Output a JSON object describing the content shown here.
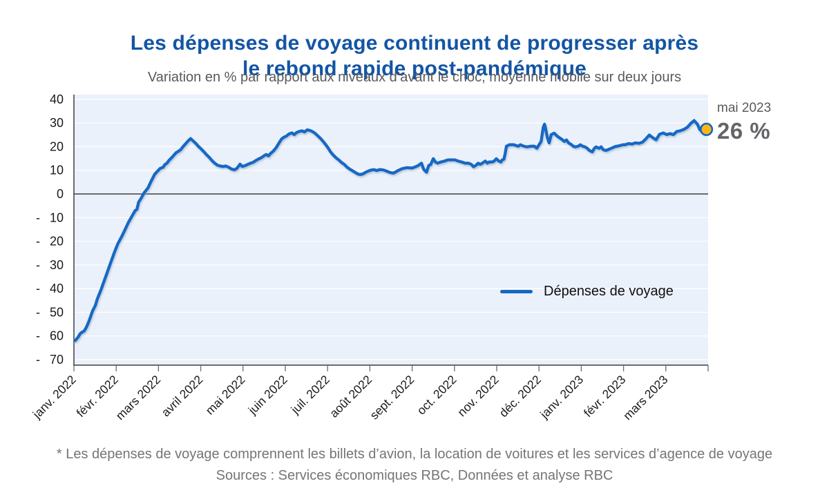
{
  "header": {
    "title_line1": "Les dépenses de voyage continuent de progresser après",
    "title_line2": "le rebond rapide post-pandémique",
    "subtitle": "Variation en % par rapport aux niveaux d’avant le choc, moyenne mobile sur deux jours"
  },
  "legend": {
    "label": "Dépenses de voyage"
  },
  "annotation": {
    "line1": "mai 2023",
    "line2": "26 %"
  },
  "footnote": {
    "line1": "* Les dépenses de voyage comprennent les billets d’avion, la location de voitures et les services d’agence de voyage",
    "line2": "Sources : Services économiques RBC, Données et analyse RBC"
  },
  "chart_data": {
    "type": "line",
    "title": "Les dépenses de voyage continuent de progresser après le rebond rapide post-pandémique",
    "subtitle": "Variation en % par rapport aux niveaux d’avant le choc, moyenne mobile sur deux jours",
    "legend_position": "center-right",
    "grid": true,
    "x_axis": {
      "n_ticks": 16,
      "tick_labels": [
        "janv. 2022",
        "févr. 2022",
        "mars 2022",
        "avril 2022",
        "mai 2022",
        "juin 2022",
        "juil. 2022",
        "août 2022",
        "sept. 2022",
        "oct. 2022",
        "nov. 2022",
        "déc. 2022",
        "janv. 2023",
        "févr. 2023",
        "mars 2023"
      ],
      "note": "x unit of series points = months since the janv. 2022 tick (0 = 1 janv. 2022); 16th tick unlabeled"
    },
    "y_axis": {
      "ticks": [
        40,
        30,
        20,
        10,
        0,
        -10,
        -20,
        -30,
        -40,
        -50,
        -60,
        -70
      ],
      "range": [
        -72,
        42
      ],
      "unit": "%"
    },
    "annotation": {
      "date_label": "mai 2023",
      "value_label": "26 %",
      "value": 26
    },
    "series": [
      {
        "name": "Dépenses de voyage",
        "points": [
          [
            0.03,
            -62
          ],
          [
            0.1,
            -60.5
          ],
          [
            0.15,
            -59
          ],
          [
            0.2,
            -58.3
          ],
          [
            0.24,
            -58
          ],
          [
            0.29,
            -56.5
          ],
          [
            0.34,
            -54.5
          ],
          [
            0.39,
            -52
          ],
          [
            0.44,
            -49.5
          ],
          [
            0.51,
            -47
          ],
          [
            0.55,
            -44.5
          ],
          [
            0.64,
            -40.5
          ],
          [
            0.72,
            -36.5
          ],
          [
            0.8,
            -32.5
          ],
          [
            0.88,
            -28.5
          ],
          [
            0.96,
            -24.5
          ],
          [
            1.04,
            -21
          ],
          [
            1.13,
            -18
          ],
          [
            1.21,
            -15
          ],
          [
            1.29,
            -12
          ],
          [
            1.37,
            -9.5
          ],
          [
            1.45,
            -7
          ],
          [
            1.49,
            -6.5
          ],
          [
            1.53,
            -3.5
          ],
          [
            1.6,
            -1.5
          ],
          [
            1.66,
            0.5
          ],
          [
            1.75,
            2.5
          ],
          [
            1.83,
            5.5
          ],
          [
            1.91,
            8.3
          ],
          [
            1.97,
            9.5
          ],
          [
            2.04,
            10.8
          ],
          [
            2.11,
            11.3
          ],
          [
            2.15,
            12.4
          ],
          [
            2.2,
            13
          ],
          [
            2.25,
            14.2
          ],
          [
            2.32,
            15.5
          ],
          [
            2.37,
            16.5
          ],
          [
            2.42,
            17.5
          ],
          [
            2.46,
            17.9
          ],
          [
            2.53,
            18.8
          ],
          [
            2.58,
            20
          ],
          [
            2.64,
            21.2
          ],
          [
            2.71,
            22.6
          ],
          [
            2.76,
            23.4
          ],
          [
            2.82,
            22.4
          ],
          [
            2.89,
            21.2
          ],
          [
            2.95,
            20
          ],
          [
            3,
            19.2
          ],
          [
            3.07,
            17.9
          ],
          [
            3.13,
            16.7
          ],
          [
            3.2,
            15.5
          ],
          [
            3.26,
            14.2
          ],
          [
            3.33,
            13
          ],
          [
            3.39,
            12.2
          ],
          [
            3.46,
            11.8
          ],
          [
            3.53,
            11.6
          ],
          [
            3.59,
            11.8
          ],
          [
            3.66,
            11.3
          ],
          [
            3.72,
            10.6
          ],
          [
            3.79,
            10.2
          ],
          [
            3.84,
            10.6
          ],
          [
            3.88,
            11.4
          ],
          [
            3.93,
            12.6
          ],
          [
            3.98,
            11.6
          ],
          [
            4.05,
            12
          ],
          [
            4.11,
            12.5
          ],
          [
            4.18,
            13
          ],
          [
            4.24,
            13.4
          ],
          [
            4.31,
            14.2
          ],
          [
            4.37,
            14.8
          ],
          [
            4.44,
            15.4
          ],
          [
            4.5,
            16.2
          ],
          [
            4.55,
            16.7
          ],
          [
            4.6,
            16.1
          ],
          [
            4.65,
            17.1
          ],
          [
            4.72,
            18.2
          ],
          [
            4.78,
            19.5
          ],
          [
            4.85,
            21.5
          ],
          [
            4.91,
            23.2
          ],
          [
            4.96,
            23.9
          ],
          [
            5.03,
            24.5
          ],
          [
            5.09,
            25.4
          ],
          [
            5.16,
            25.8
          ],
          [
            5.21,
            25.1
          ],
          [
            5.27,
            26
          ],
          [
            5.34,
            26.5
          ],
          [
            5.4,
            26.7
          ],
          [
            5.45,
            26.2
          ],
          [
            5.52,
            27.1
          ],
          [
            5.57,
            26.9
          ],
          [
            5.63,
            26.5
          ],
          [
            5.7,
            25.7
          ],
          [
            5.76,
            24.7
          ],
          [
            5.83,
            23.5
          ],
          [
            5.89,
            22.3
          ],
          [
            5.94,
            21.2
          ],
          [
            6.01,
            19.5
          ],
          [
            6.07,
            17.8
          ],
          [
            6.14,
            16.3
          ],
          [
            6.2,
            15.3
          ],
          [
            6.27,
            14.3
          ],
          [
            6.33,
            13.3
          ],
          [
            6.4,
            12.4
          ],
          [
            6.46,
            11.3
          ],
          [
            6.53,
            10.4
          ],
          [
            6.59,
            9.8
          ],
          [
            6.66,
            9
          ],
          [
            6.72,
            8.4
          ],
          [
            6.77,
            8.2
          ],
          [
            6.84,
            8.5
          ],
          [
            6.9,
            9.2
          ],
          [
            6.97,
            9.7
          ],
          [
            7.03,
            10.1
          ],
          [
            7.1,
            10.3
          ],
          [
            7.16,
            9.9
          ],
          [
            7.23,
            10.3
          ],
          [
            7.3,
            10.2
          ],
          [
            7.36,
            9.9
          ],
          [
            7.43,
            9.4
          ],
          [
            7.49,
            9
          ],
          [
            7.56,
            8.8
          ],
          [
            7.62,
            9.4
          ],
          [
            7.69,
            10.1
          ],
          [
            7.75,
            10.6
          ],
          [
            7.82,
            10.9
          ],
          [
            7.88,
            11.1
          ],
          [
            7.95,
            11
          ],
          [
            8.01,
            11
          ],
          [
            8.08,
            11.5
          ],
          [
            8.14,
            12
          ],
          [
            8.22,
            13
          ],
          [
            8.27,
            10.5
          ],
          [
            8.34,
            9.2
          ],
          [
            8.39,
            12
          ],
          [
            8.44,
            12.5
          ],
          [
            8.5,
            14.9
          ],
          [
            8.55,
            13.5
          ],
          [
            8.6,
            13
          ],
          [
            8.68,
            13.5
          ],
          [
            8.76,
            13.9
          ],
          [
            8.85,
            14.4
          ],
          [
            8.93,
            14.4
          ],
          [
            9.01,
            14.4
          ],
          [
            9.09,
            13.9
          ],
          [
            9.17,
            13.5
          ],
          [
            9.25,
            13
          ],
          [
            9.33,
            13
          ],
          [
            9.4,
            12.5
          ],
          [
            9.45,
            11.5
          ],
          [
            9.5,
            12
          ],
          [
            9.56,
            13
          ],
          [
            9.61,
            12.5
          ],
          [
            9.66,
            13
          ],
          [
            9.73,
            13.9
          ],
          [
            9.78,
            13
          ],
          [
            9.82,
            13.5
          ],
          [
            9.89,
            13.5
          ],
          [
            9.94,
            13.9
          ],
          [
            9.99,
            14.9
          ],
          [
            10.05,
            13.9
          ],
          [
            10.1,
            13.5
          ],
          [
            10.13,
            14.4
          ],
          [
            10.17,
            14.7
          ],
          [
            10.2,
            17
          ],
          [
            10.23,
            20.2
          ],
          [
            10.3,
            20.8
          ],
          [
            10.4,
            20.8
          ],
          [
            10.51,
            20.2
          ],
          [
            10.56,
            20.8
          ],
          [
            10.64,
            20.2
          ],
          [
            10.72,
            19.9
          ],
          [
            10.8,
            20.2
          ],
          [
            10.89,
            20.2
          ],
          [
            10.95,
            19.3
          ],
          [
            11,
            20.8
          ],
          [
            11.05,
            22.2
          ],
          [
            11.1,
            28.1
          ],
          [
            11.13,
            29.5
          ],
          [
            11.15,
            28.1
          ],
          [
            11.2,
            23.7
          ],
          [
            11.24,
            21.6
          ],
          [
            11.29,
            25.1
          ],
          [
            11.36,
            25.7
          ],
          [
            11.44,
            24.3
          ],
          [
            11.49,
            23.7
          ],
          [
            11.54,
            23.1
          ],
          [
            11.6,
            22.2
          ],
          [
            11.65,
            22.8
          ],
          [
            11.7,
            21.6
          ],
          [
            11.77,
            20.8
          ],
          [
            11.81,
            20.2
          ],
          [
            11.86,
            19.9
          ],
          [
            11.93,
            20.2
          ],
          [
            11.98,
            20.8
          ],
          [
            12.03,
            20.2
          ],
          [
            12.09,
            19.9
          ],
          [
            12.14,
            19.3
          ],
          [
            12.19,
            18.4
          ],
          [
            12.26,
            17.8
          ],
          [
            12.31,
            19.3
          ],
          [
            12.35,
            19.9
          ],
          [
            12.42,
            19.3
          ],
          [
            12.47,
            19.9
          ],
          [
            12.52,
            18.7
          ],
          [
            12.58,
            18.4
          ],
          [
            12.63,
            18.7
          ],
          [
            12.71,
            19.3
          ],
          [
            12.8,
            20
          ],
          [
            12.88,
            20.3
          ],
          [
            12.99,
            20.8
          ],
          [
            13.04,
            20.8
          ],
          [
            13.12,
            21.3
          ],
          [
            13.2,
            21.1
          ],
          [
            13.28,
            21.6
          ],
          [
            13.37,
            21.4
          ],
          [
            13.45,
            21.9
          ],
          [
            13.53,
            23.3
          ],
          [
            13.61,
            24.9
          ],
          [
            13.69,
            23.8
          ],
          [
            13.77,
            22.9
          ],
          [
            13.85,
            25.2
          ],
          [
            13.94,
            25.8
          ],
          [
            14.02,
            25.1
          ],
          [
            14.1,
            25.5
          ],
          [
            14.18,
            25.1
          ],
          [
            14.26,
            26.4
          ],
          [
            14.34,
            26.7
          ],
          [
            14.43,
            27.3
          ],
          [
            14.51,
            28.2
          ],
          [
            14.59,
            29.8
          ],
          [
            14.67,
            31
          ],
          [
            14.75,
            29.4
          ],
          [
            14.8,
            27.3
          ],
          [
            14.87,
            26.3
          ],
          [
            14.91,
            25.7
          ],
          [
            14.96,
            27.3
          ]
        ]
      }
    ],
    "colors": {
      "line": "#1368c4",
      "marker_fill": "#fdb515",
      "plot_bg": "#eaf1fa",
      "grid": "#ffffff",
      "zero_line": "#3f3f3f",
      "axis": "#3f3f3f",
      "tick": "#6a6a6a",
      "tick_label": "#1a1a1a",
      "title": "#1355a4",
      "subtitle": "#58595b",
      "annotation": "#646568",
      "footer": "#747578"
    }
  }
}
